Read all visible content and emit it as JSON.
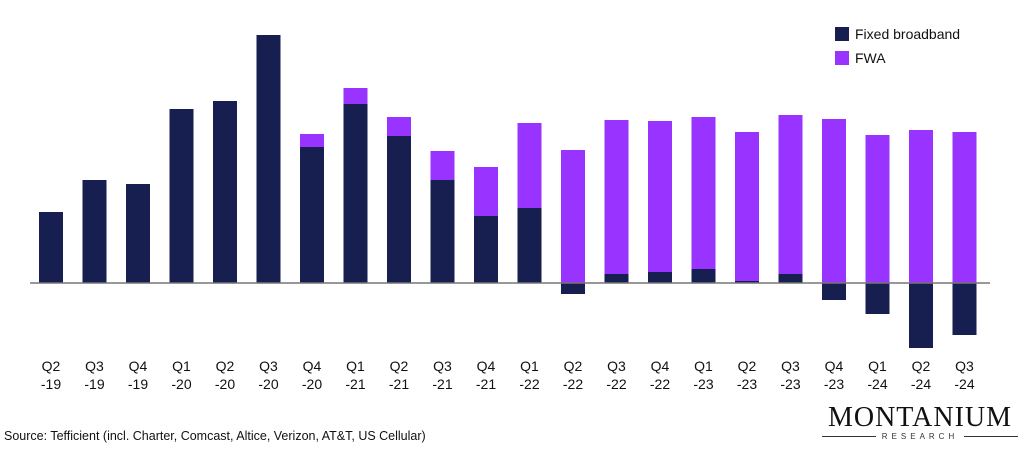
{
  "chart_data": {
    "type": "bar",
    "stacked": true,
    "categories": [
      "Q2\n-19",
      "Q3\n-19",
      "Q4\n-19",
      "Q1\n-20",
      "Q2\n-20",
      "Q3\n-20",
      "Q4\n-20",
      "Q1\n-21",
      "Q2\n-21",
      "Q3\n-21",
      "Q4\n-21",
      "Q1\n-22",
      "Q2\n-22",
      "Q3\n-22",
      "Q4\n-22",
      "Q1\n-23",
      "Q2\n-23",
      "Q3\n-23",
      "Q4\n-23",
      "Q1\n-24",
      "Q2\n-24",
      "Q3\n-24"
    ],
    "series": [
      {
        "name": "Fixed broadband",
        "color": "#161f4f",
        "values": [
          71,
          103,
          99,
          174,
          182,
          248,
          136,
          179,
          147,
          103,
          67,
          75,
          -11,
          9,
          11,
          14,
          2,
          9,
          -17,
          -31,
          -65,
          -52
        ]
      },
      {
        "name": "FWA",
        "color": "#9933ff",
        "values": [
          0,
          0,
          0,
          0,
          0,
          0,
          13,
          16,
          19,
          29,
          49,
          85,
          133,
          154,
          151,
          152,
          149,
          159,
          164,
          148,
          153,
          151
        ]
      }
    ],
    "ylim": [
      -70,
      250
    ],
    "y_axis_shown": false,
    "grid": false,
    "legend": "top-right"
  },
  "legend": {
    "items": [
      "Fixed broadband",
      "FWA"
    ]
  },
  "source": "Source: Tefficient (incl. Charter, Comcast, Altice, Verizon, AT&T, US Cellular)",
  "logo": {
    "main": "MONTANIUM",
    "sub": "RESEARCH"
  }
}
